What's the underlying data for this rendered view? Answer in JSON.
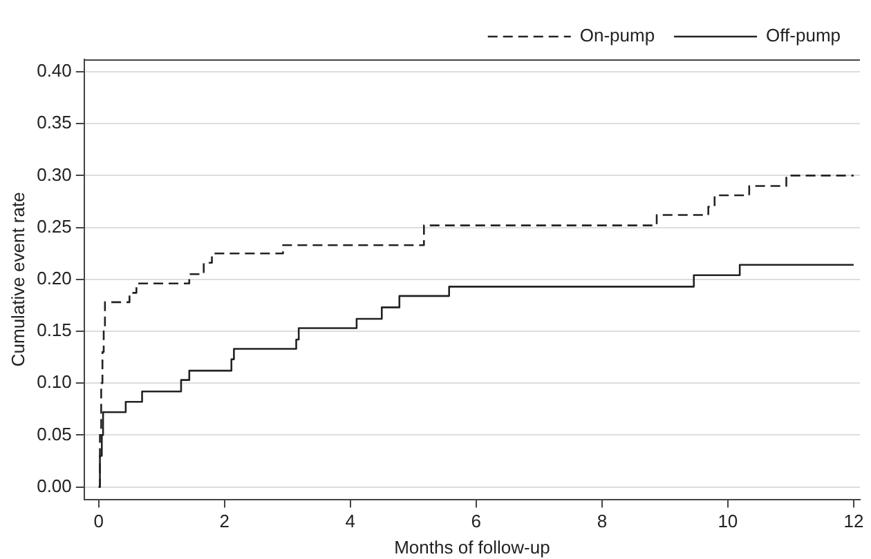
{
  "chart_data": {
    "type": "step",
    "xlabel": "Months of follow-up",
    "ylabel": "Cumulative event rate",
    "series": [
      {
        "name": "On-pump",
        "color": "#222222",
        "line_style": "dashed",
        "x": [
          0,
          0.02,
          0.04,
          0.06,
          0.08,
          0.1,
          0.49,
          0.6,
          1.44,
          1.67,
          1.8,
          2.93,
          5.17,
          8.87,
          9.69,
          9.79,
          10.34,
          10.93,
          12
        ],
        "values": [
          0,
          0.05,
          0.1,
          0.13,
          0.15,
          0.178,
          0.187,
          0.196,
          0.205,
          0.216,
          0.225,
          0.233,
          0.252,
          0.262,
          0.27,
          0.281,
          0.29,
          0.3,
          0.3
        ]
      },
      {
        "name": "Off-pump",
        "color": "#222222",
        "line_style": "solid",
        "x": [
          0,
          0.02,
          0.05,
          0.07,
          0.43,
          0.69,
          1.31,
          1.44,
          2.11,
          2.15,
          3.14,
          3.18,
          4.1,
          4.5,
          4.78,
          5.57,
          9.46,
          10.19,
          12
        ],
        "values": [
          0,
          0.03,
          0.05,
          0.072,
          0.082,
          0.092,
          0.103,
          0.112,
          0.123,
          0.133,
          0.142,
          0.153,
          0.162,
          0.173,
          0.184,
          0.193,
          0.204,
          0.214,
          0.214
        ]
      }
    ],
    "xlim": [
      -0.23,
      12.1
    ],
    "xticks": [
      0,
      2,
      4,
      6,
      8,
      10,
      12
    ],
    "ylim": [
      -0.012,
      0.412
    ],
    "yticks": [
      {
        "value": 0,
        "label": "0.00"
      },
      {
        "value": 0.05,
        "label": "0.05"
      },
      {
        "value": 0.1,
        "label": "0.10"
      },
      {
        "value": 0.15,
        "label": "0.15"
      },
      {
        "value": 0.2,
        "label": "0.20"
      },
      {
        "value": 0.25,
        "label": "0.25"
      },
      {
        "value": 0.3,
        "label": "0.30"
      },
      {
        "value": 0.35,
        "label": "0.35"
      },
      {
        "value": 0.4,
        "label": "0.40"
      }
    ],
    "grid": "y",
    "legend": "top right",
    "marker": "none"
  }
}
